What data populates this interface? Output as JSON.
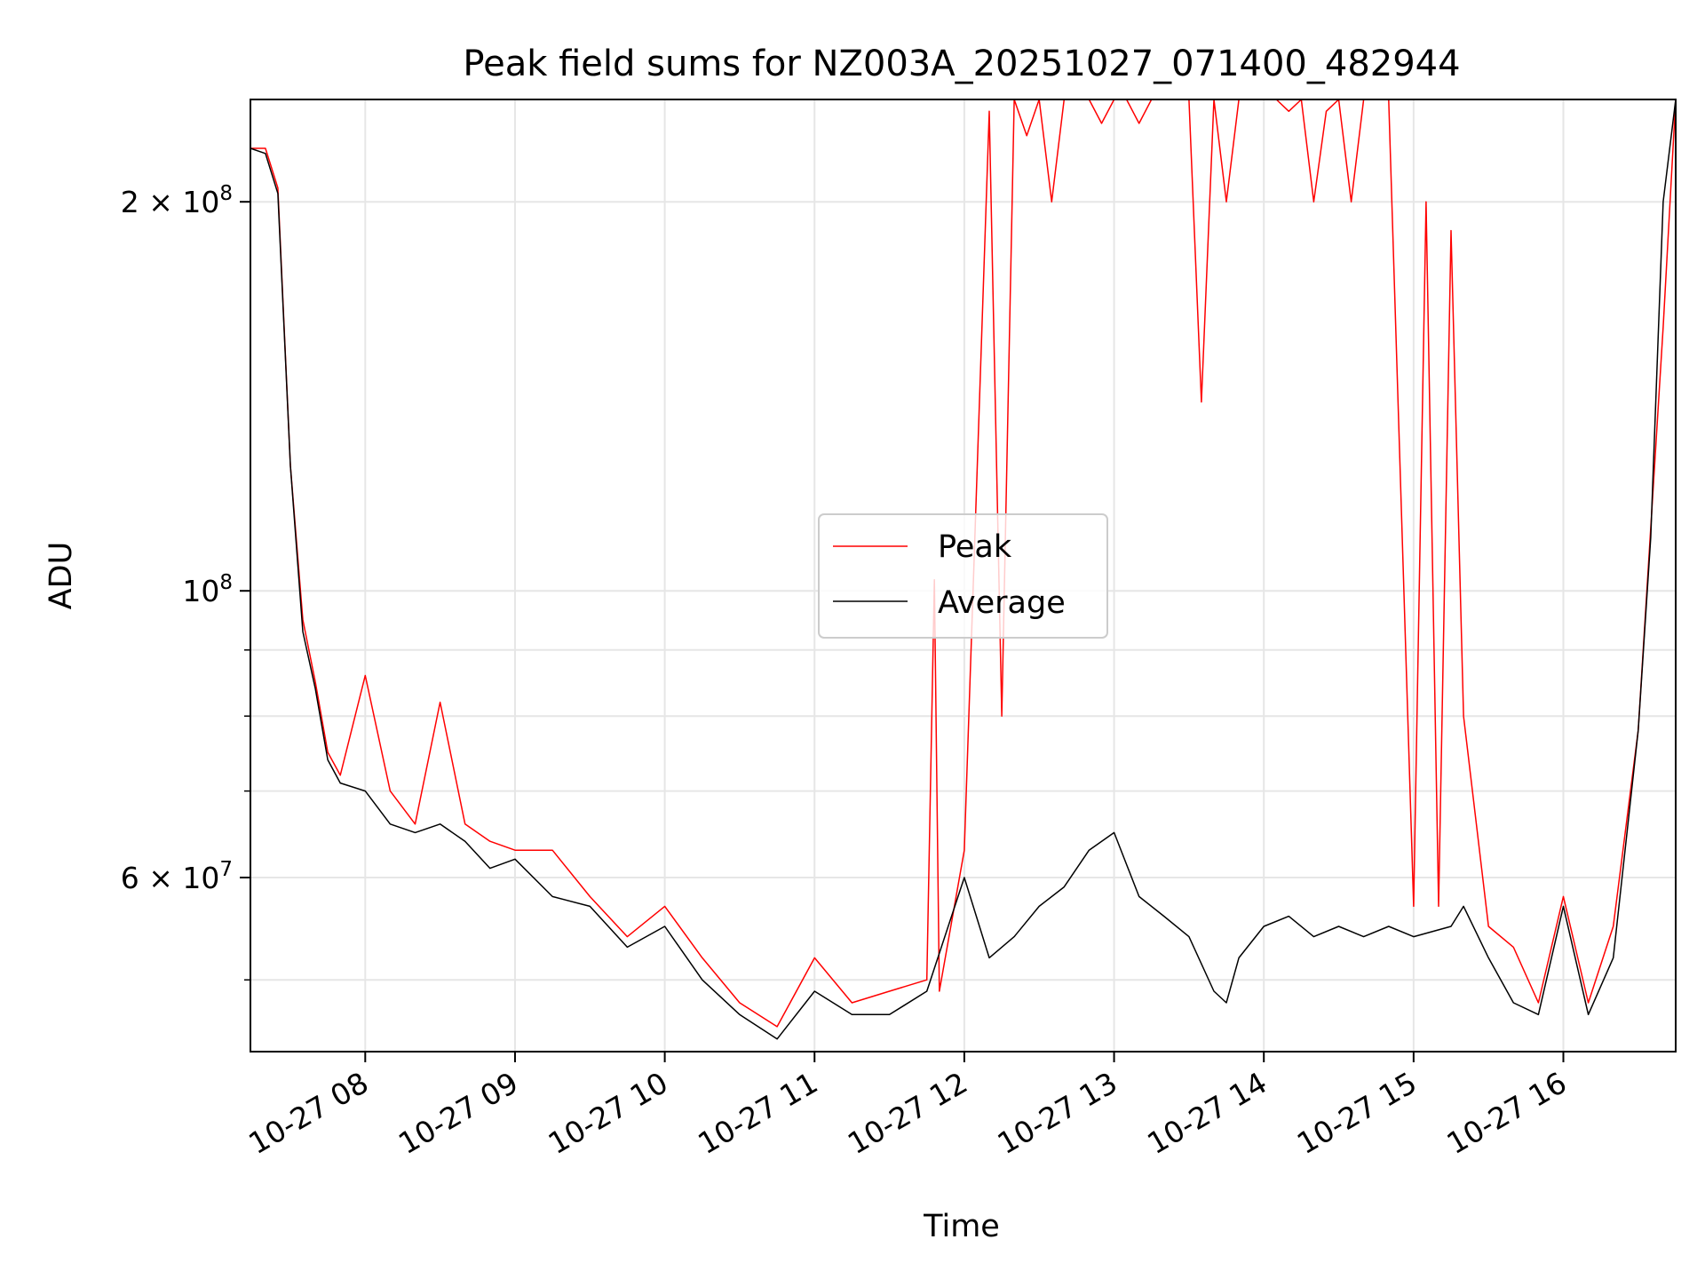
{
  "chart_data": {
    "type": "line",
    "title": "Peak field sums for NZ003A_20251027_071400_482944",
    "xlabel": "Time",
    "ylabel": "ADU",
    "yscale": "log",
    "grid": true,
    "legend_position": "center",
    "x_range": [
      "2025-10-27 07:14",
      "2025-10-27 16:45"
    ],
    "ylim": [
      44000000,
      240000000
    ],
    "x_ticks": [
      "10-27 08",
      "10-27 09",
      "10-27 10",
      "10-27 11",
      "10-27 12",
      "10-27 13",
      "10-27 14",
      "10-27 15",
      "10-27 16"
    ],
    "y_ticks": [
      {
        "value": 200000000,
        "base": "2 × 10",
        "exp": "8"
      },
      {
        "value": 100000000,
        "base": "10",
        "exp": "8"
      },
      {
        "value": 60000000,
        "base": "6 × 10",
        "exp": "7"
      }
    ],
    "x_tick_times": [
      "2025-10-27 08:00",
      "2025-10-27 09:00",
      "2025-10-27 10:00",
      "2025-10-27 11:00",
      "2025-10-27 12:00",
      "2025-10-27 13:00",
      "2025-10-27 14:00",
      "2025-10-27 15:00",
      "2025-10-27 16:00"
    ],
    "minor_y_ticks": [
      50000000,
      70000000,
      80000000,
      90000000
    ],
    "series": [
      {
        "name": "Peak",
        "color": "#ff0000",
        "x": [
          "2025-10-27 07:14",
          "2025-10-27 07:20",
          "2025-10-27 07:25",
          "2025-10-27 07:30",
          "2025-10-27 07:35",
          "2025-10-27 07:40",
          "2025-10-27 07:45",
          "2025-10-27 07:50",
          "2025-10-27 08:00",
          "2025-10-27 08:10",
          "2025-10-27 08:20",
          "2025-10-27 08:30",
          "2025-10-27 08:40",
          "2025-10-27 08:50",
          "2025-10-27 09:00",
          "2025-10-27 09:15",
          "2025-10-27 09:30",
          "2025-10-27 09:45",
          "2025-10-27 10:00",
          "2025-10-27 10:15",
          "2025-10-27 10:30",
          "2025-10-27 10:45",
          "2025-10-27 11:00",
          "2025-10-27 11:15",
          "2025-10-27 11:30",
          "2025-10-27 11:45",
          "2025-10-27 11:48",
          "2025-10-27 11:50",
          "2025-10-27 12:00",
          "2025-10-27 12:10",
          "2025-10-27 12:15",
          "2025-10-27 12:20",
          "2025-10-27 12:25",
          "2025-10-27 12:30",
          "2025-10-27 12:35",
          "2025-10-27 12:40",
          "2025-10-27 12:45",
          "2025-10-27 12:50",
          "2025-10-27 12:55",
          "2025-10-27 13:00",
          "2025-10-27 13:05",
          "2025-10-27 13:10",
          "2025-10-27 13:15",
          "2025-10-27 13:20",
          "2025-10-27 13:25",
          "2025-10-27 13:30",
          "2025-10-27 13:35",
          "2025-10-27 13:40",
          "2025-10-27 13:45",
          "2025-10-27 13:50",
          "2025-10-27 13:55",
          "2025-10-27 14:00",
          "2025-10-27 14:05",
          "2025-10-27 14:10",
          "2025-10-27 14:15",
          "2025-10-27 14:20",
          "2025-10-27 14:25",
          "2025-10-27 14:30",
          "2025-10-27 14:35",
          "2025-10-27 14:40",
          "2025-10-27 14:45",
          "2025-10-27 14:50",
          "2025-10-27 15:00",
          "2025-10-27 15:05",
          "2025-10-27 15:10",
          "2025-10-27 15:15",
          "2025-10-27 15:20",
          "2025-10-27 15:30",
          "2025-10-27 15:40",
          "2025-10-27 15:50",
          "2025-10-27 16:00",
          "2025-10-27 16:10",
          "2025-10-27 16:20",
          "2025-10-27 16:30",
          "2025-10-27 16:40",
          "2025-10-27 16:45"
        ],
        "values": [
          220000000,
          220000000,
          205000000,
          125000000,
          95000000,
          85000000,
          75000000,
          72000000,
          86000000,
          70000000,
          66000000,
          82000000,
          66000000,
          64000000,
          63000000,
          63000000,
          58000000,
          54000000,
          57000000,
          52000000,
          48000000,
          46000000,
          52000000,
          48000000,
          49000000,
          50000000,
          102000000,
          49000000,
          63000000,
          235000000,
          80000000,
          240000000,
          225000000,
          240000000,
          200000000,
          240000000,
          240000000,
          240000000,
          230000000,
          240000000,
          240000000,
          230000000,
          240000000,
          240000000,
          240000000,
          240000000,
          140000000,
          240000000,
          200000000,
          240000000,
          240000000,
          240000000,
          240000000,
          235000000,
          240000000,
          200000000,
          235000000,
          240000000,
          200000000,
          240000000,
          240000000,
          240000000,
          57000000,
          200000000,
          57000000,
          190000000,
          80000000,
          55000000,
          53000000,
          48000000,
          58000000,
          48000000,
          55000000,
          78000000,
          160000000,
          240000000
        ]
      },
      {
        "name": "Average",
        "color": "#000000",
        "x": [
          "2025-10-27 07:14",
          "2025-10-27 07:20",
          "2025-10-27 07:25",
          "2025-10-27 07:30",
          "2025-10-27 07:35",
          "2025-10-27 07:40",
          "2025-10-27 07:45",
          "2025-10-27 07:50",
          "2025-10-27 08:00",
          "2025-10-27 08:10",
          "2025-10-27 08:20",
          "2025-10-27 08:30",
          "2025-10-27 08:40",
          "2025-10-27 08:50",
          "2025-10-27 09:00",
          "2025-10-27 09:15",
          "2025-10-27 09:30",
          "2025-10-27 09:45",
          "2025-10-27 10:00",
          "2025-10-27 10:15",
          "2025-10-27 10:30",
          "2025-10-27 10:45",
          "2025-10-27 11:00",
          "2025-10-27 11:15",
          "2025-10-27 11:30",
          "2025-10-27 11:45",
          "2025-10-27 12:00",
          "2025-10-27 12:10",
          "2025-10-27 12:20",
          "2025-10-27 12:30",
          "2025-10-27 12:40",
          "2025-10-27 12:50",
          "2025-10-27 13:00",
          "2025-10-27 13:10",
          "2025-10-27 13:20",
          "2025-10-27 13:30",
          "2025-10-27 13:40",
          "2025-10-27 13:45",
          "2025-10-27 13:50",
          "2025-10-27 14:00",
          "2025-10-27 14:10",
          "2025-10-27 14:20",
          "2025-10-27 14:30",
          "2025-10-27 14:40",
          "2025-10-27 14:50",
          "2025-10-27 15:00",
          "2025-10-27 15:15",
          "2025-10-27 15:20",
          "2025-10-27 15:30",
          "2025-10-27 15:40",
          "2025-10-27 15:50",
          "2025-10-27 16:00",
          "2025-10-27 16:10",
          "2025-10-27 16:20",
          "2025-10-27 16:30",
          "2025-10-27 16:35",
          "2025-10-27 16:40",
          "2025-10-27 16:45"
        ],
        "values": [
          220000000,
          218000000,
          203000000,
          125000000,
          93000000,
          84000000,
          74000000,
          71000000,
          70000000,
          66000000,
          65000000,
          66000000,
          64000000,
          61000000,
          62000000,
          58000000,
          57000000,
          53000000,
          55000000,
          50000000,
          47000000,
          45000000,
          49000000,
          47000000,
          47000000,
          49000000,
          60000000,
          52000000,
          54000000,
          57000000,
          59000000,
          63000000,
          65000000,
          58000000,
          56000000,
          54000000,
          49000000,
          48000000,
          52000000,
          55000000,
          56000000,
          54000000,
          55000000,
          54000000,
          55000000,
          54000000,
          55000000,
          57000000,
          52000000,
          48000000,
          47000000,
          57000000,
          47000000,
          52000000,
          78000000,
          110000000,
          200000000,
          240000000
        ]
      }
    ]
  }
}
